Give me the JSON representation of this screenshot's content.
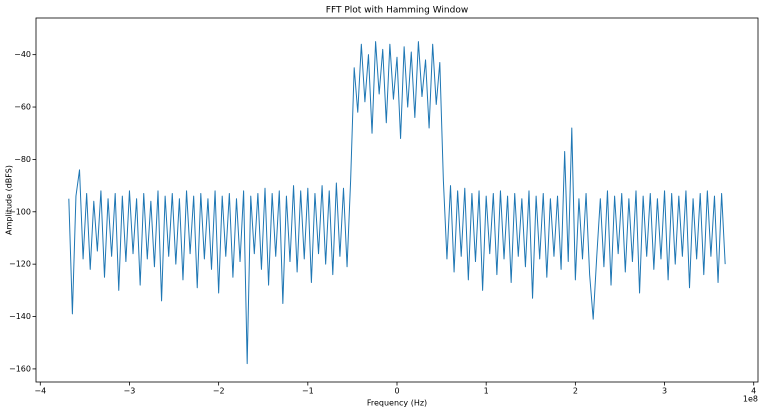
{
  "chart_data": {
    "type": "line",
    "title": "FFT Plot with Hamming Window",
    "x_label": "Frequency (Hz)",
    "y_label": "Amplitude (dBFS)",
    "x_offset_label": "1e8",
    "color": "#1f77b4",
    "xlim": [
      -4.048,
      4.048
    ],
    "ylim": [
      -165,
      -26
    ],
    "xticks": [
      {
        "value": -4,
        "label": "−4"
      },
      {
        "value": -3,
        "label": "−3"
      },
      {
        "value": -2,
        "label": "−2"
      },
      {
        "value": -1,
        "label": "−1"
      },
      0,
      1,
      2,
      3,
      4
    ],
    "yticks": [
      {
        "value": -160,
        "label": "−160"
      },
      {
        "value": -140,
        "label": "−140"
      },
      {
        "value": -120,
        "label": "−120"
      },
      {
        "value": -100,
        "label": "−100"
      },
      {
        "value": -80,
        "label": "−80"
      },
      {
        "value": -60,
        "label": "−60"
      },
      {
        "value": -40,
        "label": "−40"
      }
    ],
    "x": [
      -3.68,
      -3.64,
      -3.6,
      -3.56,
      -3.52,
      -3.48,
      -3.44,
      -3.4,
      -3.36,
      -3.32,
      -3.28,
      -3.24,
      -3.2,
      -3.16,
      -3.12,
      -3.08,
      -3.04,
      -3,
      -2.96,
      -2.92,
      -2.88,
      -2.84,
      -2.8,
      -2.76,
      -2.72,
      -2.68,
      -2.64,
      -2.6,
      -2.56,
      -2.52,
      -2.48,
      -2.44,
      -2.4,
      -2.36,
      -2.32,
      -2.28,
      -2.24,
      -2.2,
      -2.16,
      -2.12,
      -2.08,
      -2.04,
      -2,
      -1.96,
      -1.92,
      -1.88,
      -1.84,
      -1.8,
      -1.76,
      -1.72,
      -1.68,
      -1.64,
      -1.6,
      -1.56,
      -1.52,
      -1.48,
      -1.44,
      -1.4,
      -1.36,
      -1.32,
      -1.28,
      -1.24,
      -1.2,
      -1.16,
      -1.12,
      -1.08,
      -1.04,
      -1,
      -0.96,
      -0.92,
      -0.88,
      -0.84,
      -0.8,
      -0.76,
      -0.72,
      -0.68,
      -0.64,
      -0.6,
      -0.56,
      -0.52,
      -0.48,
      -0.44,
      -0.4,
      -0.36,
      -0.32,
      -0.28,
      -0.24,
      -0.2,
      -0.16,
      -0.12,
      -0.08,
      -0.04,
      0,
      0.04,
      0.08,
      0.12,
      0.16,
      0.2,
      0.24,
      0.28,
      0.32,
      0.36,
      0.4,
      0.44,
      0.48,
      0.52,
      0.56,
      0.6,
      0.64,
      0.68,
      0.72,
      0.76,
      0.8,
      0.84,
      0.88,
      0.92,
      0.96,
      1,
      1.04,
      1.08,
      1.12,
      1.16,
      1.2,
      1.24,
      1.28,
      1.32,
      1.36,
      1.4,
      1.44,
      1.48,
      1.52,
      1.56,
      1.6,
      1.64,
      1.68,
      1.72,
      1.76,
      1.8,
      1.84,
      1.88,
      1.92,
      1.96,
      2,
      2.04,
      2.08,
      2.12,
      2.16,
      2.2,
      2.24,
      2.28,
      2.32,
      2.36,
      2.4,
      2.44,
      2.48,
      2.52,
      2.56,
      2.6,
      2.64,
      2.68,
      2.72,
      2.76,
      2.8,
      2.84,
      2.88,
      2.92,
      2.96,
      3,
      3.04,
      3.08,
      3.12,
      3.16,
      3.2,
      3.24,
      3.28,
      3.32,
      3.36,
      3.4,
      3.44,
      3.48,
      3.52,
      3.56,
      3.6,
      3.64,
      3.68
    ],
    "values": [
      -95,
      -139,
      -94,
      -84,
      -118,
      -93,
      -122,
      -96,
      -115,
      -92,
      -125,
      -95,
      -117,
      -93,
      -130,
      -94,
      -119,
      -92,
      -116,
      -95,
      -128,
      -93,
      -118,
      -96,
      -121,
      -92,
      -134,
      -94,
      -117,
      -93,
      -120,
      -95,
      -126,
      -92,
      -116,
      -94,
      -129,
      -93,
      -118,
      -95,
      -122,
      -92,
      -131,
      -94,
      -117,
      -93,
      -125,
      -95,
      -119,
      -92,
      -158,
      -94,
      -116,
      -93,
      -122,
      -91,
      -128,
      -93,
      -117,
      -92,
      -135,
      -94,
      -119,
      -90,
      -123,
      -92,
      -118,
      -91,
      -127,
      -93,
      -116,
      -90,
      -120,
      -92,
      -124,
      -89,
      -117,
      -91,
      -121,
      -88,
      -45,
      -62,
      -36,
      -58,
      -40,
      -70,
      -35,
      -55,
      -38,
      -66,
      -36,
      -57,
      -41,
      -72,
      -37,
      -60,
      -39,
      -64,
      -35,
      -56,
      -42,
      -68,
      -36,
      -59,
      -43,
      -88,
      -118,
      -90,
      -123,
      -92,
      -117,
      -91,
      -126,
      -93,
      -119,
      -92,
      -130,
      -94,
      -116,
      -93,
      -124,
      -92,
      -118,
      -94,
      -127,
      -93,
      -117,
      -95,
      -121,
      -92,
      -133,
      -94,
      -118,
      -93,
      -125,
      -95,
      -117,
      -94,
      -122,
      -77,
      -119,
      -68,
      -126,
      -95,
      -118,
      -93,
      -124,
      -141,
      -117,
      -95,
      -121,
      -92,
      -128,
      -94,
      -116,
      -93,
      -123,
      -95,
      -119,
      -92,
      -131,
      -94,
      -117,
      -93,
      -122,
      -95,
      -118,
      -92,
      -126,
      -93,
      -120,
      -94,
      -117,
      -92,
      -129,
      -95,
      -118,
      -93,
      -124,
      -92,
      -117,
      -94,
      -127,
      -93,
      -120
    ]
  }
}
